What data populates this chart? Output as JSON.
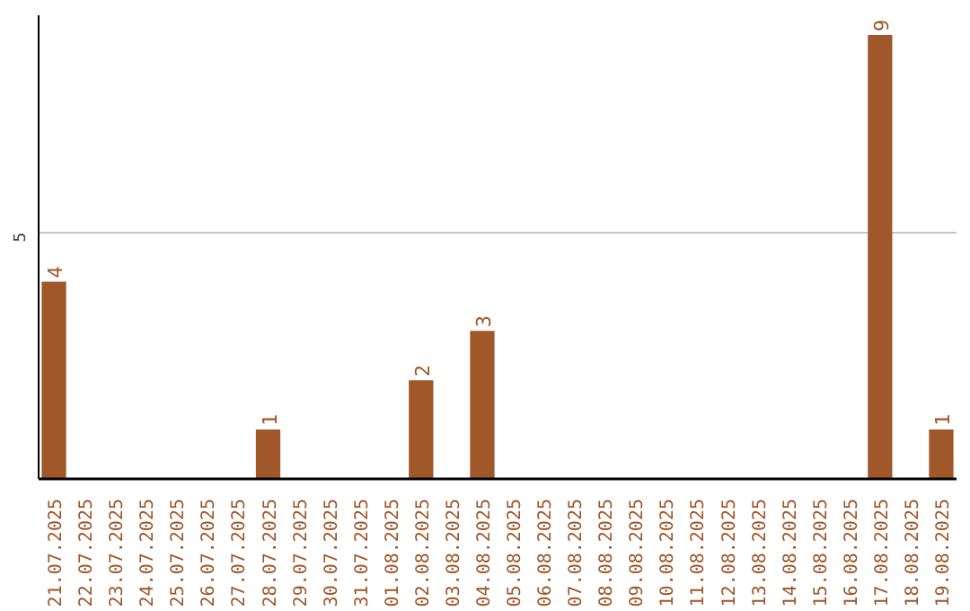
{
  "chart_data": {
    "type": "bar",
    "categories": [
      "21.07.2025",
      "22.07.2025",
      "23.07.2025",
      "24.07.2025",
      "25.07.2025",
      "26.07.2025",
      "27.07.2025",
      "28.07.2025",
      "29.07.2025",
      "30.07.2025",
      "31.07.2025",
      "01.08.2025",
      "02.08.2025",
      "03.08.2025",
      "04.08.2025",
      "05.08.2025",
      "06.08.2025",
      "07.08.2025",
      "08.08.2025",
      "09.08.2025",
      "10.08.2025",
      "11.08.2025",
      "12.08.2025",
      "13.08.2025",
      "14.08.2025",
      "15.08.2025",
      "16.08.2025",
      "17.08.2025",
      "18.08.2025",
      "19.08.2025"
    ],
    "values": [
      4,
      0,
      0,
      0,
      0,
      0,
      0,
      1,
      0,
      0,
      0,
      0,
      2,
      0,
      3,
      0,
      0,
      0,
      0,
      0,
      0,
      0,
      0,
      0,
      0,
      0,
      0,
      9,
      0,
      1
    ],
    "value_labels": [
      "4",
      null,
      null,
      null,
      null,
      null,
      null,
      "1",
      null,
      null,
      null,
      null,
      "2",
      null,
      "3",
      null,
      null,
      null,
      null,
      null,
      null,
      null,
      null,
      null,
      null,
      null,
      null,
      "9",
      null,
      "1"
    ],
    "color": "#a0572a",
    "ylim": [
      0,
      9.4
    ],
    "yticks": [
      5
    ],
    "grid": "y"
  }
}
